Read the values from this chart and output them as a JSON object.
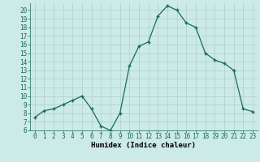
{
  "xlabel": "Humidex (Indice chaleur)",
  "x": [
    0,
    1,
    2,
    3,
    4,
    5,
    6,
    7,
    8,
    9,
    10,
    11,
    12,
    13,
    14,
    15,
    16,
    17,
    18,
    19,
    20,
    21,
    22,
    23
  ],
  "y": [
    7.5,
    8.3,
    8.5,
    9.0,
    9.5,
    10.0,
    8.5,
    6.5,
    6.0,
    8.0,
    13.5,
    15.8,
    16.3,
    19.3,
    20.5,
    20.0,
    18.5,
    18.0,
    15.0,
    14.2,
    13.8,
    13.0,
    8.5,
    8.2
  ],
  "line_color": "#1a6b5a",
  "marker": "+",
  "marker_size": 3.5,
  "bg_color": "#cceae7",
  "grid_color": "#b0d0cc",
  "ylim": [
    6,
    20.8
  ],
  "xlim": [
    -0.5,
    23.5
  ],
  "yticks": [
    6,
    7,
    8,
    9,
    10,
    11,
    12,
    13,
    14,
    15,
    16,
    17,
    18,
    19,
    20
  ],
  "xticks": [
    0,
    1,
    2,
    3,
    4,
    5,
    6,
    7,
    8,
    9,
    10,
    11,
    12,
    13,
    14,
    15,
    16,
    17,
    18,
    19,
    20,
    21,
    22,
    23
  ],
  "tick_fontsize": 5.5,
  "xlabel_fontsize": 6.5,
  "line_width": 0.9
}
